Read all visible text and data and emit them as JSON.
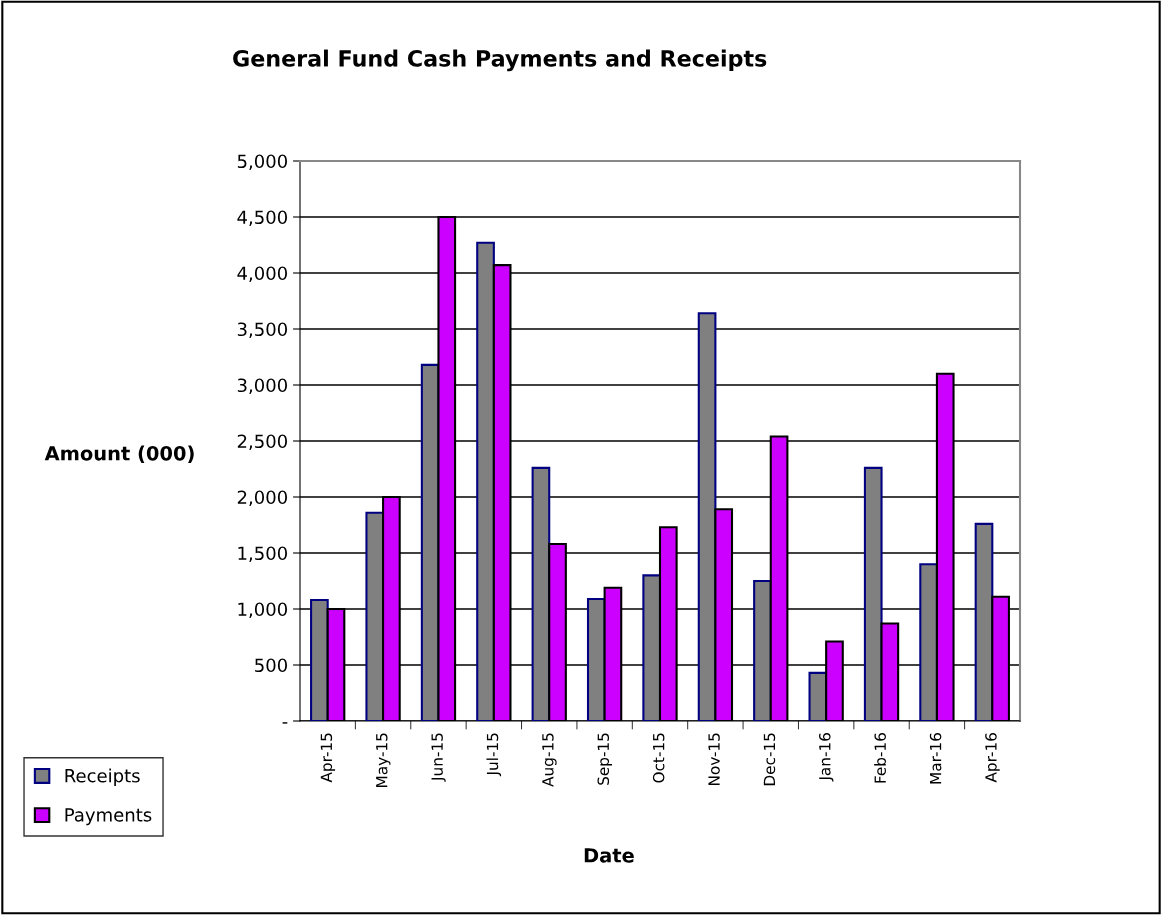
{
  "chart_data": {
    "type": "bar",
    "title": "General Fund Cash Payments and Receipts",
    "xlabel": "Date",
    "ylabel": "Amount (000)",
    "categories": [
      "Apr-15",
      "May-15",
      "Jun-15",
      "Jul-15",
      "Aug-15",
      "Sep-15",
      "Oct-15",
      "Nov-15",
      "Dec-15",
      "Jan-16",
      "Feb-16",
      "Mar-16",
      "Apr-16"
    ],
    "series": [
      {
        "name": "Receipts",
        "color": "#808080",
        "values": [
          1080,
          1860,
          3180,
          4270,
          2260,
          1090,
          1300,
          3640,
          1250,
          430,
          2260,
          1400,
          1760
        ]
      },
      {
        "name": "Payments",
        "color": "#cc00ff",
        "values": [
          1000,
          2000,
          4500,
          4070,
          1580,
          1190,
          1730,
          1890,
          2540,
          710,
          870,
          3100,
          1110
        ]
      }
    ],
    "ylim": [
      0,
      5000
    ],
    "yticks": [
      {
        "value": 0,
        "label": "-"
      },
      {
        "value": 500,
        "label": "500"
      },
      {
        "value": 1000,
        "label": "1,000"
      },
      {
        "value": 1500,
        "label": "1,500"
      },
      {
        "value": 2000,
        "label": "2,000"
      },
      {
        "value": 2500,
        "label": "2,500"
      },
      {
        "value": 3000,
        "label": "3,000"
      },
      {
        "value": 3500,
        "label": "3,500"
      },
      {
        "value": 4000,
        "label": "4,000"
      },
      {
        "value": 4500,
        "label": "4,500"
      },
      {
        "value": 5000,
        "label": "5,000"
      }
    ],
    "grid": "y",
    "legend": "bottom left"
  }
}
